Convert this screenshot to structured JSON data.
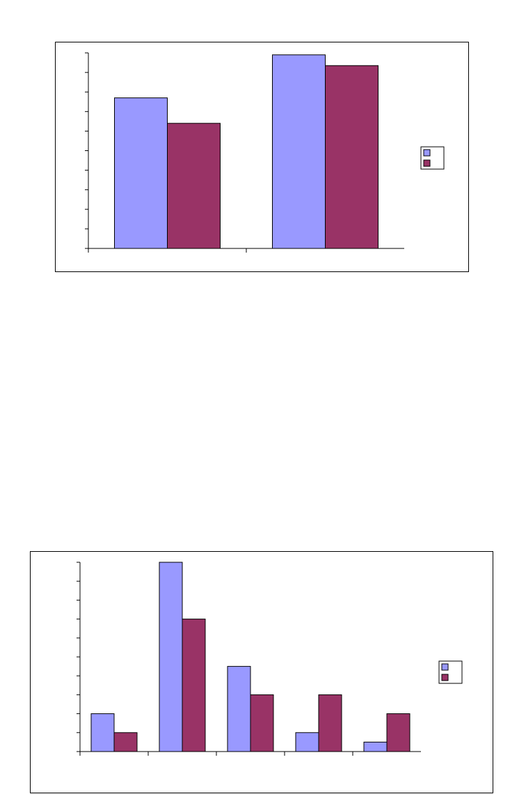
{
  "page": {
    "background": "#ffffff"
  },
  "colors": {
    "series1": "#9999ff",
    "series2": "#993366",
    "axis": "#000000",
    "frame": "#000000"
  },
  "chart_data": [
    {
      "type": "bar",
      "title": "",
      "xlabel": "",
      "ylabel": "",
      "categories": [
        "",
        ""
      ],
      "series": [
        {
          "values": [
            7.7,
            9.9
          ]
        },
        {
          "values": [
            6.4,
            9.35
          ]
        }
      ],
      "ylim": [
        0,
        10
      ],
      "y_ticks": 10,
      "grid": false,
      "legend": {
        "placement": "right",
        "entries": [
          "",
          ""
        ]
      }
    },
    {
      "type": "bar",
      "title": "",
      "xlabel": "",
      "ylabel": "",
      "categories": [
        "",
        "",
        "",
        "",
        ""
      ],
      "series": [
        {
          "values": [
            2,
            10,
            4.5,
            1,
            0.5
          ]
        },
        {
          "values": [
            1,
            7,
            3,
            3,
            2
          ]
        }
      ],
      "ylim": [
        0,
        10
      ],
      "y_ticks": 10,
      "grid": false,
      "legend": {
        "placement": "right",
        "entries": [
          "",
          ""
        ]
      }
    }
  ]
}
